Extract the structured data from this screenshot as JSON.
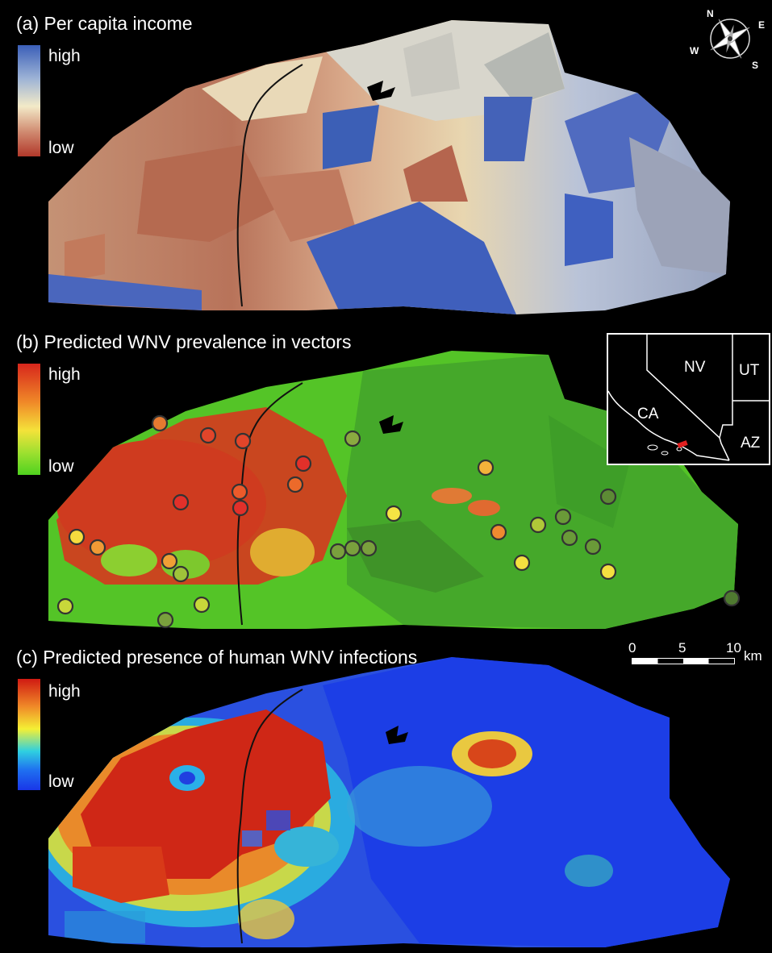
{
  "panels": [
    {
      "title": "(a) Per capita income",
      "legend_high": "high",
      "legend_low": "low"
    },
    {
      "title": "(b) Predicted WNV prevalence in vectors",
      "legend_high": "high",
      "legend_low": "low"
    },
    {
      "title": "(c) Predicted presence of human WNV infections",
      "legend_high": "high",
      "legend_low": "low"
    }
  ],
  "compass": {
    "n": "N",
    "e": "E",
    "s": "S",
    "w": "W"
  },
  "inset_map": {
    "states": [
      "NV",
      "UT",
      "CA",
      "AZ"
    ]
  },
  "scale_bar": {
    "ticks": [
      "0",
      "5",
      "10"
    ],
    "unit": "km"
  },
  "colors": {
    "income_high": "#3b5fb8",
    "income_mid": "#f1ecc8",
    "income_low": "#b2382a",
    "prevalence_high": "#d7261c",
    "prevalence_mid": "#f4e23a",
    "prevalence_low": "#4fd21f",
    "human_high": "#d01a12",
    "human_mid": "#f4f034",
    "human_low": "#1936e8"
  },
  "trap_sites": [
    {
      "level": "medium-high"
    },
    {
      "level": "high"
    },
    {
      "level": "high"
    },
    {
      "level": "low"
    },
    {
      "level": "high"
    },
    {
      "level": "high"
    },
    {
      "level": "high"
    },
    {
      "level": "high"
    },
    {
      "level": "medium-high"
    },
    {
      "level": "medium"
    },
    {
      "level": "medium-high"
    },
    {
      "level": "low"
    },
    {
      "level": "medium"
    },
    {
      "level": "medium-high"
    },
    {
      "level": "medium"
    },
    {
      "level": "low"
    },
    {
      "level": "low"
    },
    {
      "level": "low"
    },
    {
      "level": "low"
    },
    {
      "level": "low"
    },
    {
      "level": "medium-high"
    },
    {
      "level": "low"
    },
    {
      "level": "low"
    },
    {
      "level": "medium-low"
    },
    {
      "level": "low"
    },
    {
      "level": "medium"
    },
    {
      "level": "medium"
    },
    {
      "level": "medium-low"
    },
    {
      "level": "medium-low"
    },
    {
      "level": "low"
    },
    {
      "level": "low"
    }
  ]
}
